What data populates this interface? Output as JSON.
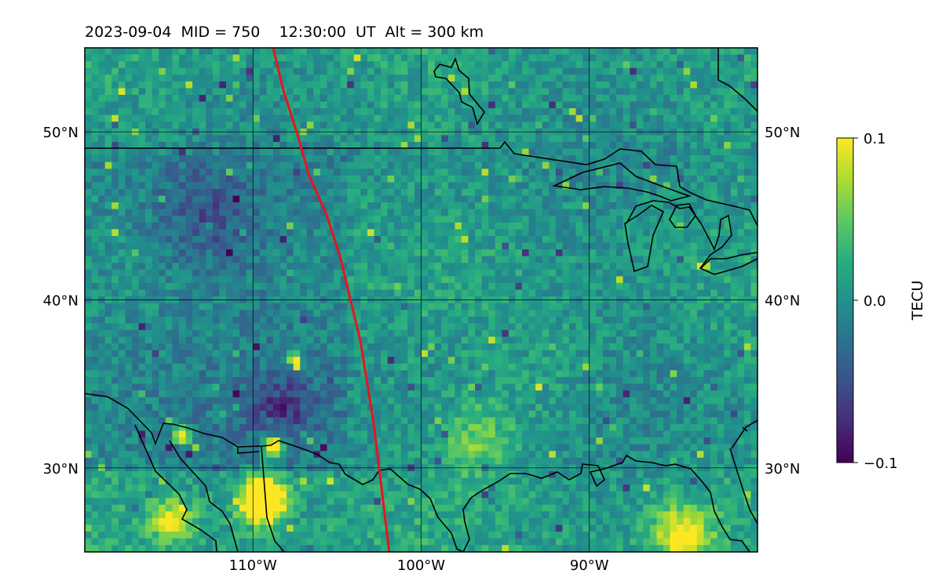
{
  "title": "2023-09-04  MID = 750    12:30:00  UT  Alt = 300 km",
  "map": {
    "lon_range": [
      -120,
      -80
    ],
    "lat_range": [
      25,
      55
    ],
    "lon_ticks": [
      {
        "value": -110,
        "label": "110°W"
      },
      {
        "value": -100,
        "label": "100°W"
      },
      {
        "value": -90,
        "label": "90°W"
      }
    ],
    "lat_ticks": [
      {
        "value": 50,
        "label": "50°N"
      },
      {
        "value": 40,
        "label": "40°N"
      },
      {
        "value": 30,
        "label": "30°N"
      }
    ],
    "terminator_color": "#e8141c",
    "terminator_line": [
      [
        -108.8,
        55
      ],
      [
        -108.2,
        52.5
      ],
      [
        -107.4,
        50
      ],
      [
        -106.7,
        47.5
      ],
      [
        -105.6,
        45
      ],
      [
        -104.8,
        42.5
      ],
      [
        -104.2,
        40
      ],
      [
        -103.6,
        37.5
      ],
      [
        -103.2,
        35
      ],
      [
        -102.8,
        32.5
      ],
      [
        -102.5,
        30
      ],
      [
        -102.2,
        27.5
      ],
      [
        -101.9,
        25
      ]
    ],
    "coastline_color": "#000000"
  },
  "colorbar": {
    "label": "TECU",
    "min": -0.1,
    "max": 0.1,
    "ticks": [
      {
        "value": 0.1,
        "label": "0.1"
      },
      {
        "value": 0.0,
        "label": "0.0"
      },
      {
        "value": -0.1,
        "label": "−0.1"
      }
    ],
    "colors": [
      "#440154",
      "#472d7b",
      "#3b528b",
      "#2c728e",
      "#21918c",
      "#28ae80",
      "#5ec962",
      "#addc30",
      "#fde725"
    ]
  }
}
